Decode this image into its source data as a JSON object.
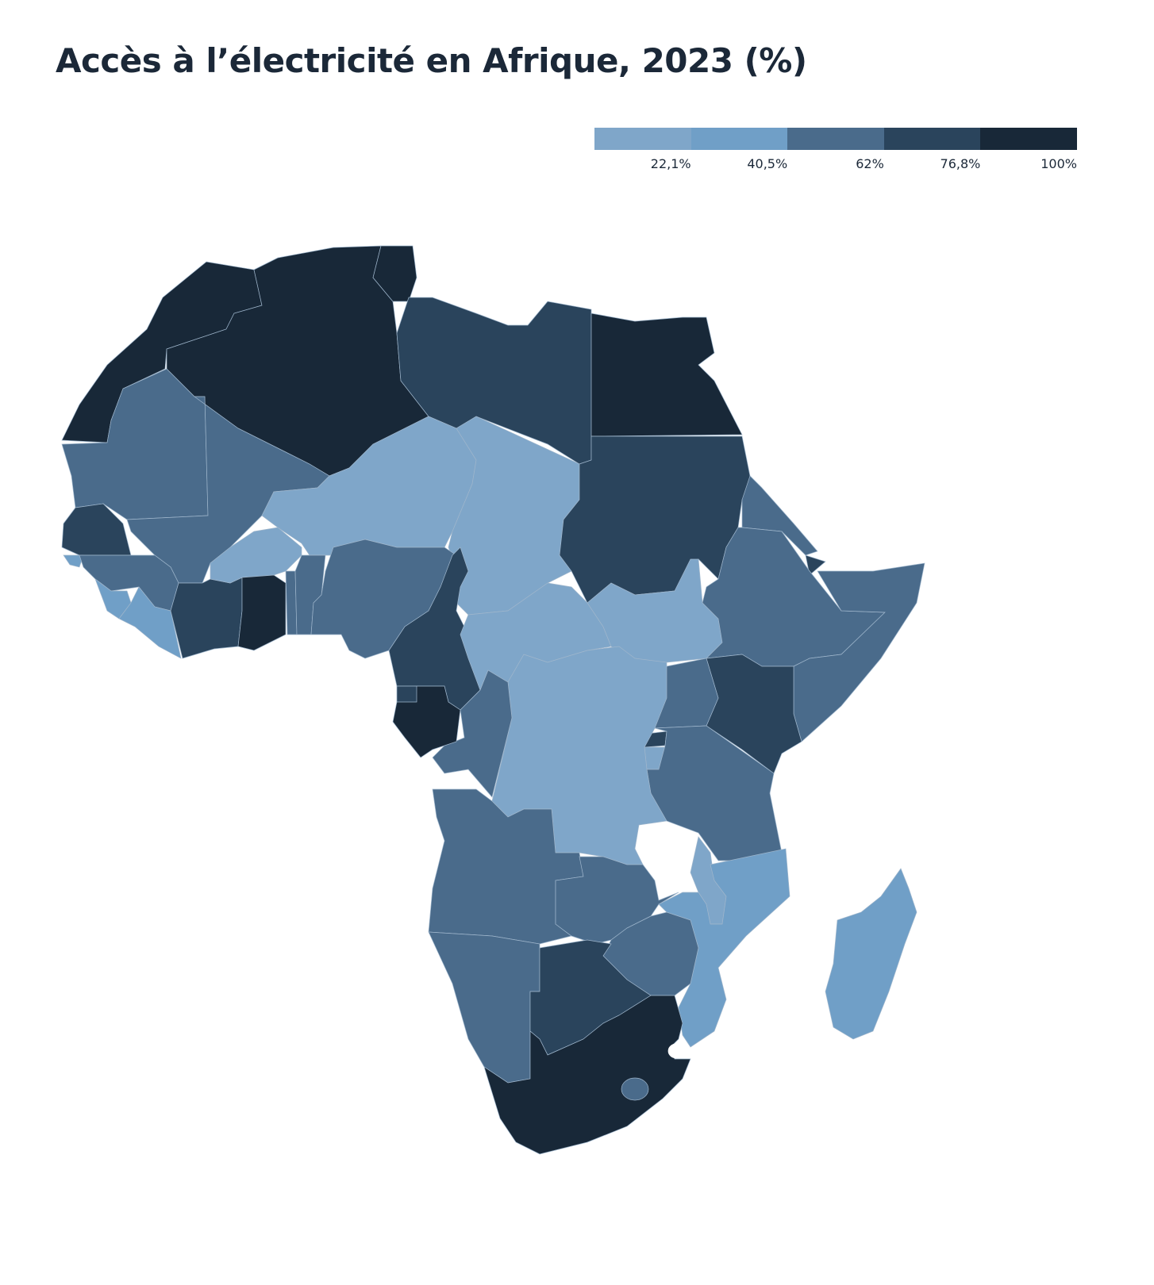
{
  "title": "Accès à l’électricité en Afrique, 2023 (%)",
  "legend": {
    "colors": [
      "#7fa6c9",
      "#709fc7",
      "#4a6b8b",
      "#2a445c",
      "#182838"
    ],
    "labels": [
      "",
      "22,1%",
      "40,5%",
      "62%",
      "76,8%",
      "100%"
    ],
    "ticks": [
      "22,1%",
      "40,5%",
      "62%",
      "76,8%",
      "100%"
    ]
  },
  "region_bins": {
    "morocco": 4,
    "algeria": 4,
    "tunisia": 4,
    "libya": 3,
    "egypt": 4,
    "mauritania": 2,
    "mali": 2,
    "niger": 0,
    "chad": 0,
    "sudan": 3,
    "senegal": 3,
    "guinea-bissau": 1,
    "guinea": 2,
    "sierra-leone": 1,
    "liberia": 1,
    "cote-divoire": 3,
    "burkina-faso": 0,
    "ghana": 4,
    "togo": 2,
    "benin": 2,
    "nigeria": 2,
    "cameroon": 3,
    "central-african-republic": 0,
    "south-sudan": 0,
    "eritrea": 2,
    "djibouti": 3,
    "ethiopia": 2,
    "somalia": 2,
    "kenya": 3,
    "uganda": 2,
    "rwanda": 3,
    "burundi": 0,
    "tanzania": 2,
    "dr-congo": 0,
    "congo": 2,
    "gabon": 4,
    "equatorial-guinea": 3,
    "angola": 2,
    "zambia": 2,
    "malawi": 0,
    "mozambique": 1,
    "zimbabwe": 2,
    "namibia": 2,
    "botswana": 3,
    "south-africa": 4,
    "lesotho": 2,
    "madagascar": 1
  }
}
